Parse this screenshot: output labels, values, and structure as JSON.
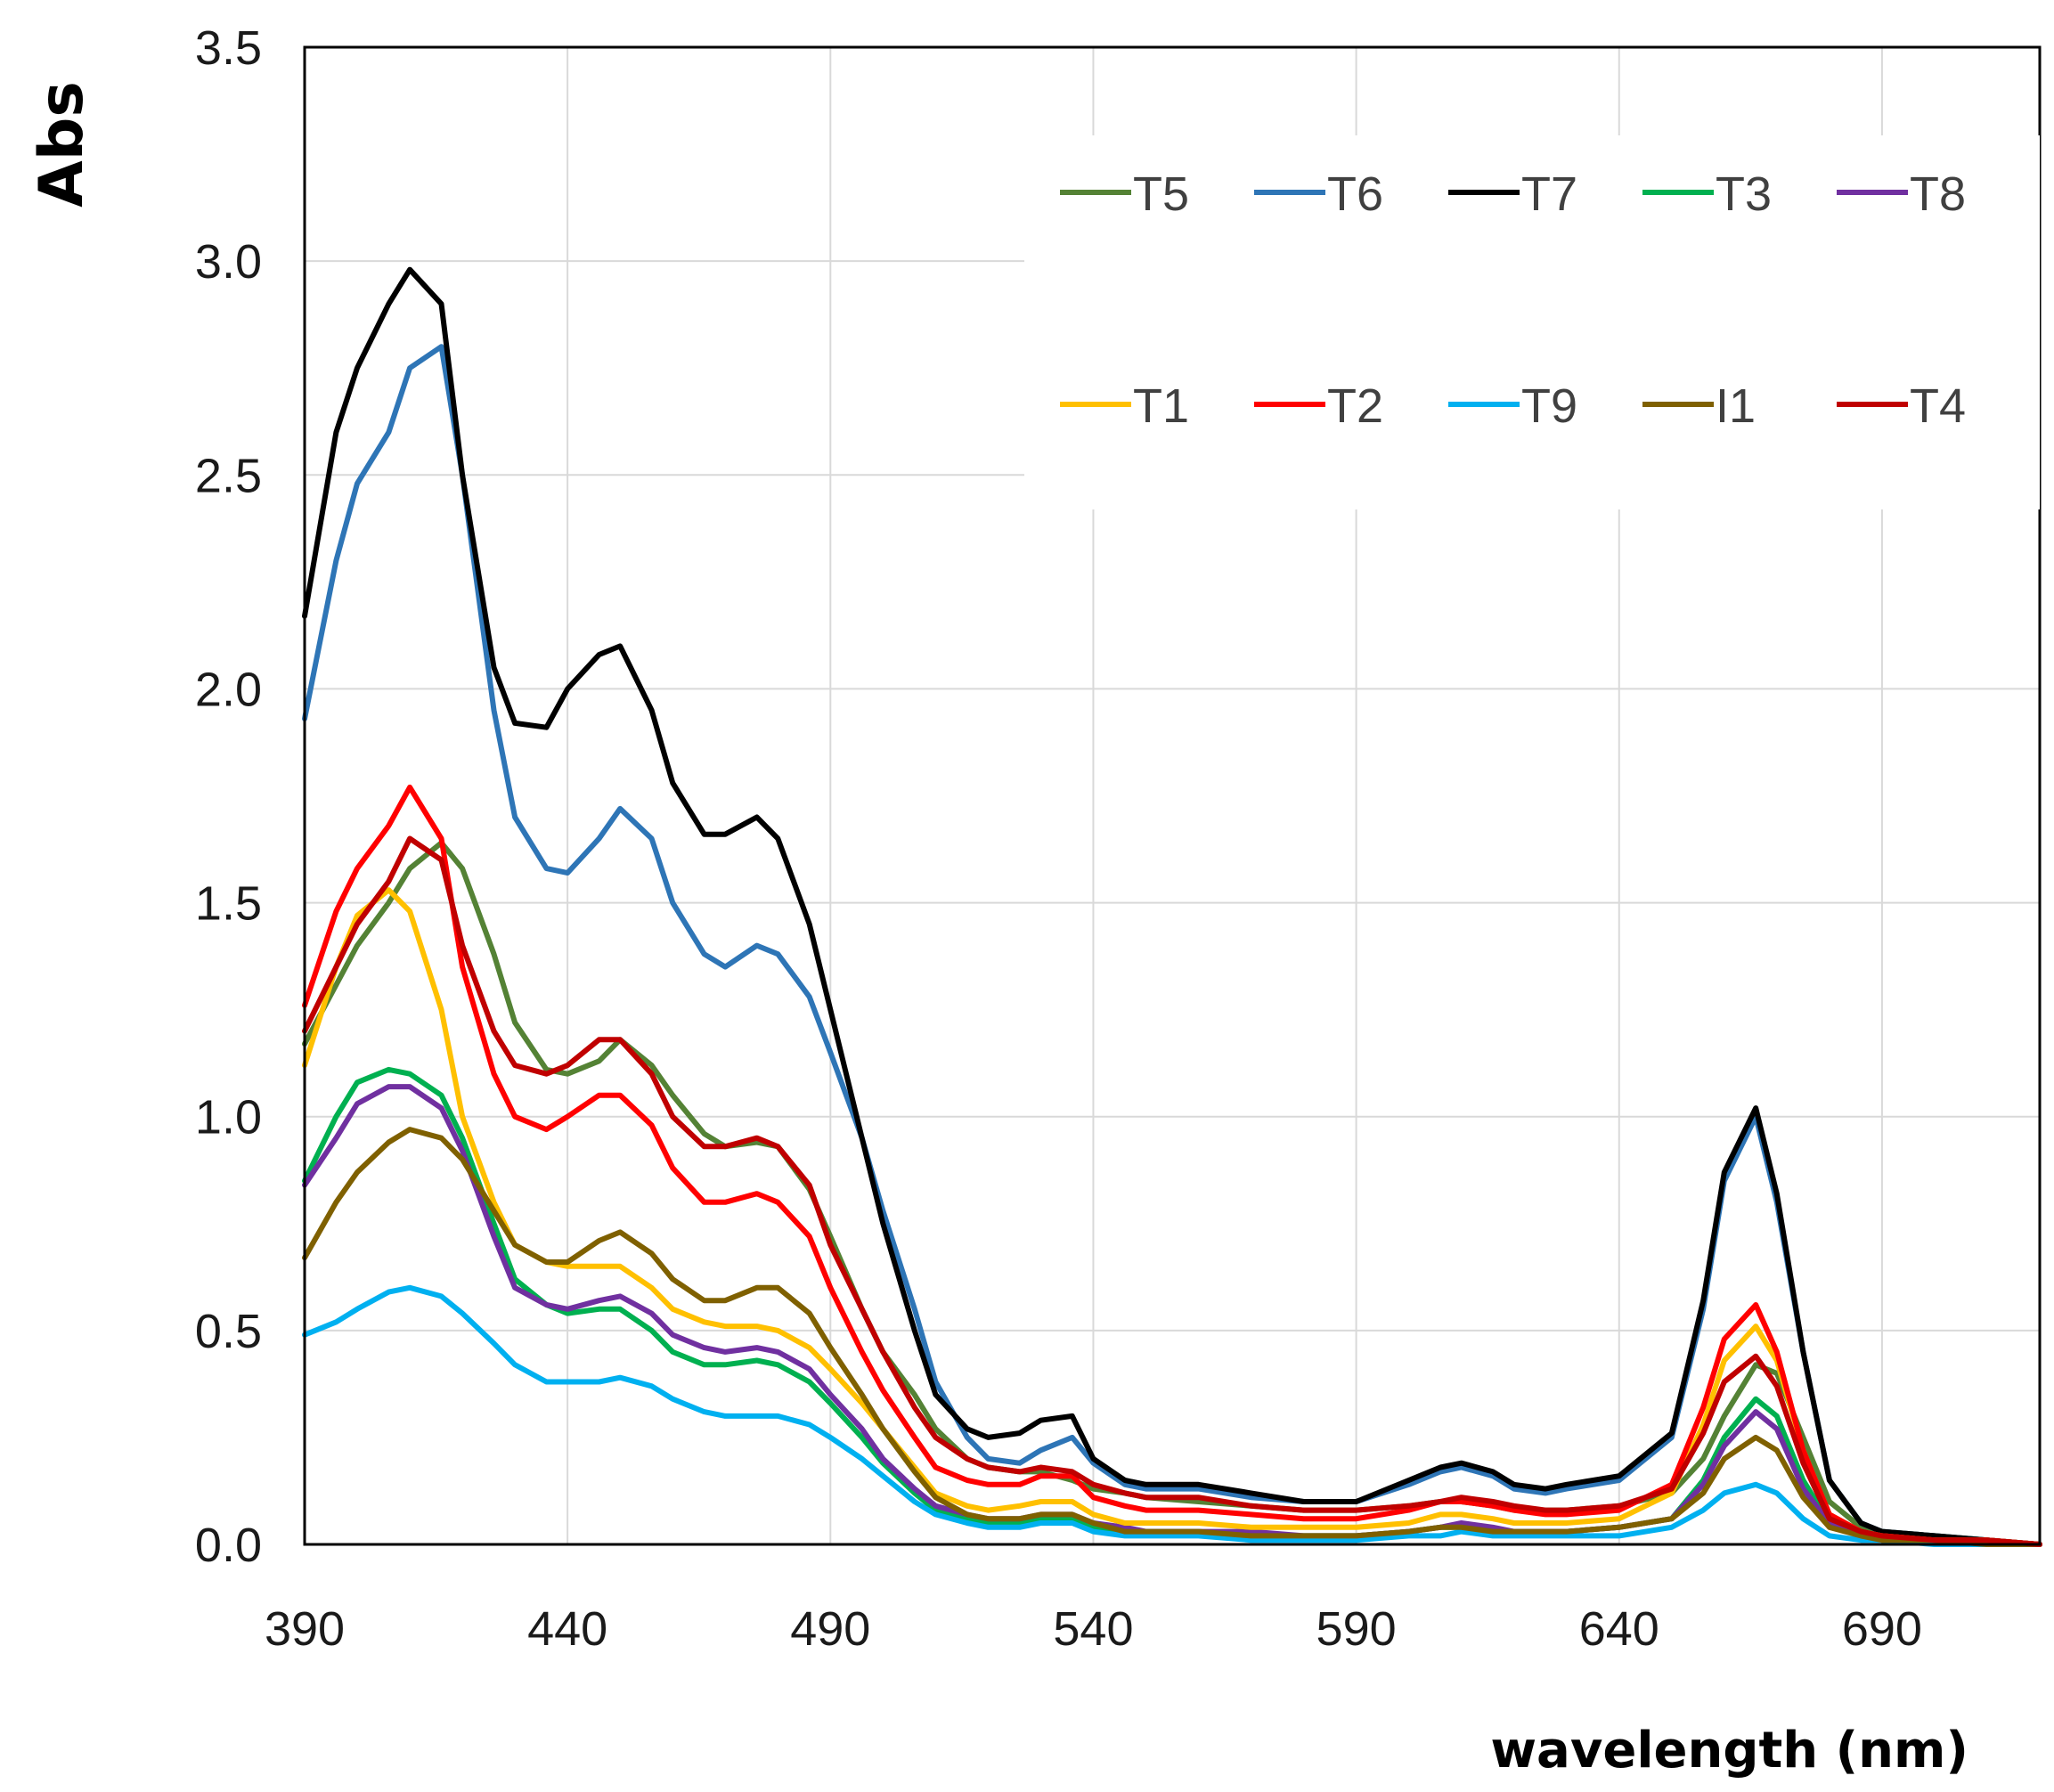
{
  "chart_data": {
    "type": "line",
    "title": "",
    "xlabel": "wavelength (nm)",
    "ylabel": "Abs",
    "xlim": [
      390,
      720
    ],
    "ylim": [
      0,
      3.5
    ],
    "xticks": [
      390,
      440,
      490,
      540,
      590,
      640,
      690
    ],
    "yticks": [
      "0.0",
      "0.5",
      "1.0",
      "1.5",
      "2.0",
      "2.5",
      "3.0",
      "3.5"
    ],
    "grid": true,
    "legend_position": "top-right",
    "series": [
      {
        "name": "T5",
        "color": "#548235",
        "x": [
          390,
          400,
          406,
          410,
          416,
          420,
          426,
          430,
          436,
          440,
          446,
          450,
          456,
          460,
          466,
          470,
          476,
          480,
          486,
          490,
          496,
          500,
          506,
          510,
          516,
          520,
          526,
          530,
          536,
          540,
          546,
          550,
          560,
          570,
          580,
          590,
          600,
          606,
          610,
          616,
          620,
          626,
          630,
          640,
          650,
          656,
          660,
          666,
          670,
          675,
          680,
          686,
          690,
          700,
          710,
          720
        ],
        "y": [
          1.17,
          1.4,
          1.5,
          1.58,
          1.64,
          1.58,
          1.38,
          1.22,
          1.11,
          1.1,
          1.13,
          1.18,
          1.12,
          1.05,
          0.96,
          0.93,
          0.94,
          0.93,
          0.83,
          0.72,
          0.55,
          0.45,
          0.35,
          0.27,
          0.2,
          0.18,
          0.17,
          0.17,
          0.15,
          0.13,
          0.12,
          0.11,
          0.1,
          0.09,
          0.08,
          0.08,
          0.09,
          0.1,
          0.1,
          0.09,
          0.08,
          0.08,
          0.08,
          0.09,
          0.12,
          0.2,
          0.3,
          0.42,
          0.4,
          0.25,
          0.1,
          0.04,
          0.03,
          0.02,
          0.01,
          0.0
        ]
      },
      {
        "name": "T6",
        "color": "#2E75B6",
        "x": [
          390,
          396,
          400,
          406,
          410,
          416,
          420,
          426,
          430,
          436,
          440,
          446,
          450,
          456,
          460,
          466,
          470,
          476,
          480,
          486,
          490,
          496,
          500,
          506,
          510,
          516,
          520,
          526,
          530,
          536,
          540,
          546,
          550,
          560,
          570,
          580,
          590,
          600,
          606,
          610,
          616,
          620,
          626,
          630,
          640,
          650,
          656,
          660,
          666,
          670,
          675,
          680,
          686,
          690,
          700,
          710,
          720
        ],
        "y": [
          1.93,
          2.3,
          2.48,
          2.6,
          2.75,
          2.8,
          2.5,
          1.95,
          1.7,
          1.58,
          1.57,
          1.65,
          1.72,
          1.65,
          1.5,
          1.38,
          1.35,
          1.4,
          1.38,
          1.28,
          1.15,
          0.95,
          0.78,
          0.55,
          0.38,
          0.25,
          0.2,
          0.19,
          0.22,
          0.25,
          0.19,
          0.14,
          0.13,
          0.13,
          0.11,
          0.1,
          0.1,
          0.14,
          0.17,
          0.18,
          0.16,
          0.13,
          0.12,
          0.13,
          0.15,
          0.25,
          0.55,
          0.85,
          1.0,
          0.8,
          0.45,
          0.15,
          0.05,
          0.03,
          0.02,
          0.01,
          0.0
        ]
      },
      {
        "name": "T7",
        "color": "#000000",
        "x": [
          390,
          396,
          400,
          406,
          410,
          416,
          420,
          426,
          430,
          436,
          440,
          446,
          450,
          456,
          460,
          466,
          470,
          476,
          480,
          486,
          490,
          496,
          500,
          506,
          510,
          516,
          520,
          526,
          530,
          536,
          540,
          546,
          550,
          560,
          570,
          580,
          590,
          600,
          606,
          610,
          616,
          620,
          626,
          630,
          640,
          650,
          656,
          660,
          666,
          670,
          675,
          680,
          686,
          690,
          700,
          710,
          720
        ],
        "y": [
          2.17,
          2.6,
          2.75,
          2.9,
          2.98,
          2.9,
          2.5,
          2.05,
          1.92,
          1.91,
          2.0,
          2.08,
          2.1,
          1.95,
          1.78,
          1.66,
          1.66,
          1.7,
          1.65,
          1.45,
          1.25,
          0.95,
          0.75,
          0.5,
          0.35,
          0.27,
          0.25,
          0.26,
          0.29,
          0.3,
          0.2,
          0.15,
          0.14,
          0.14,
          0.12,
          0.1,
          0.1,
          0.15,
          0.18,
          0.19,
          0.17,
          0.14,
          0.13,
          0.14,
          0.16,
          0.26,
          0.57,
          0.87,
          1.02,
          0.82,
          0.45,
          0.15,
          0.05,
          0.03,
          0.02,
          0.01,
          0.0
        ]
      },
      {
        "name": "T3",
        "color": "#00B050",
        "x": [
          390,
          396,
          400,
          406,
          410,
          416,
          420,
          426,
          430,
          436,
          440,
          446,
          450,
          456,
          460,
          466,
          470,
          476,
          480,
          486,
          490,
          496,
          500,
          506,
          510,
          516,
          520,
          526,
          530,
          536,
          540,
          546,
          550,
          560,
          570,
          580,
          590,
          600,
          606,
          610,
          616,
          620,
          626,
          630,
          640,
          650,
          656,
          660,
          666,
          670,
          675,
          680,
          686,
          690,
          700,
          710,
          720
        ],
        "y": [
          0.85,
          1.0,
          1.08,
          1.11,
          1.1,
          1.05,
          0.95,
          0.75,
          0.62,
          0.56,
          0.54,
          0.55,
          0.55,
          0.5,
          0.45,
          0.42,
          0.42,
          0.43,
          0.42,
          0.38,
          0.33,
          0.25,
          0.19,
          0.12,
          0.08,
          0.06,
          0.05,
          0.05,
          0.06,
          0.06,
          0.04,
          0.03,
          0.03,
          0.03,
          0.02,
          0.02,
          0.02,
          0.03,
          0.04,
          0.04,
          0.03,
          0.03,
          0.03,
          0.03,
          0.04,
          0.06,
          0.15,
          0.25,
          0.34,
          0.3,
          0.15,
          0.05,
          0.02,
          0.01,
          0.01,
          0.0,
          0.0
        ]
      },
      {
        "name": "T8",
        "color": "#7030A0",
        "x": [
          390,
          396,
          400,
          406,
          410,
          416,
          420,
          426,
          430,
          436,
          440,
          446,
          450,
          456,
          460,
          466,
          470,
          476,
          480,
          486,
          490,
          496,
          500,
          506,
          510,
          516,
          520,
          526,
          530,
          536,
          540,
          546,
          550,
          560,
          570,
          580,
          590,
          600,
          606,
          610,
          616,
          620,
          626,
          630,
          640,
          650,
          656,
          660,
          666,
          670,
          675,
          680,
          686,
          690,
          700,
          710,
          720
        ],
        "y": [
          0.84,
          0.95,
          1.03,
          1.07,
          1.07,
          1.02,
          0.92,
          0.72,
          0.6,
          0.56,
          0.55,
          0.57,
          0.58,
          0.54,
          0.49,
          0.46,
          0.45,
          0.46,
          0.45,
          0.41,
          0.35,
          0.27,
          0.2,
          0.13,
          0.09,
          0.07,
          0.06,
          0.06,
          0.07,
          0.07,
          0.05,
          0.04,
          0.03,
          0.03,
          0.03,
          0.02,
          0.02,
          0.03,
          0.04,
          0.05,
          0.04,
          0.03,
          0.03,
          0.03,
          0.04,
          0.06,
          0.14,
          0.23,
          0.31,
          0.27,
          0.13,
          0.05,
          0.02,
          0.01,
          0.01,
          0.0,
          0.0
        ]
      },
      {
        "name": "T1",
        "color": "#FFC000",
        "x": [
          390,
          396,
          400,
          406,
          410,
          416,
          420,
          426,
          430,
          436,
          440,
          446,
          450,
          456,
          460,
          466,
          470,
          476,
          480,
          486,
          490,
          496,
          500,
          506,
          510,
          516,
          520,
          526,
          530,
          536,
          540,
          546,
          550,
          560,
          570,
          580,
          590,
          600,
          606,
          610,
          616,
          620,
          626,
          630,
          640,
          650,
          656,
          660,
          666,
          670,
          675,
          680,
          686,
          690,
          700,
          710,
          720
        ],
        "y": [
          1.12,
          1.35,
          1.47,
          1.53,
          1.48,
          1.25,
          1.0,
          0.8,
          0.7,
          0.66,
          0.65,
          0.65,
          0.65,
          0.6,
          0.55,
          0.52,
          0.51,
          0.51,
          0.5,
          0.46,
          0.41,
          0.33,
          0.27,
          0.18,
          0.12,
          0.09,
          0.08,
          0.09,
          0.1,
          0.1,
          0.07,
          0.05,
          0.05,
          0.05,
          0.04,
          0.04,
          0.04,
          0.05,
          0.07,
          0.07,
          0.06,
          0.05,
          0.05,
          0.05,
          0.06,
          0.12,
          0.28,
          0.43,
          0.51,
          0.43,
          0.22,
          0.07,
          0.03,
          0.02,
          0.01,
          0.01,
          0.0
        ]
      },
      {
        "name": "T2",
        "color": "#FF0000",
        "x": [
          390,
          396,
          400,
          406,
          410,
          416,
          420,
          426,
          430,
          436,
          440,
          446,
          450,
          456,
          460,
          466,
          470,
          476,
          480,
          486,
          490,
          496,
          500,
          506,
          510,
          516,
          520,
          526,
          530,
          536,
          540,
          546,
          550,
          560,
          570,
          580,
          590,
          600,
          606,
          610,
          616,
          620,
          626,
          630,
          640,
          650,
          656,
          660,
          666,
          670,
          675,
          680,
          686,
          690,
          700,
          710,
          720
        ],
        "y": [
          1.26,
          1.48,
          1.58,
          1.68,
          1.77,
          1.65,
          1.35,
          1.1,
          1.0,
          0.97,
          1.0,
          1.05,
          1.05,
          0.98,
          0.88,
          0.8,
          0.8,
          0.82,
          0.8,
          0.72,
          0.6,
          0.45,
          0.36,
          0.25,
          0.18,
          0.15,
          0.14,
          0.14,
          0.16,
          0.16,
          0.11,
          0.09,
          0.08,
          0.08,
          0.07,
          0.06,
          0.06,
          0.08,
          0.1,
          0.1,
          0.09,
          0.08,
          0.07,
          0.07,
          0.08,
          0.14,
          0.32,
          0.48,
          0.56,
          0.45,
          0.22,
          0.07,
          0.03,
          0.02,
          0.01,
          0.01,
          0.0
        ]
      },
      {
        "name": "T9",
        "color": "#00B0F0",
        "x": [
          390,
          396,
          400,
          406,
          410,
          416,
          420,
          426,
          430,
          436,
          440,
          446,
          450,
          456,
          460,
          466,
          470,
          476,
          480,
          486,
          490,
          496,
          500,
          506,
          510,
          516,
          520,
          526,
          530,
          536,
          540,
          546,
          550,
          560,
          570,
          580,
          590,
          600,
          606,
          610,
          616,
          620,
          626,
          630,
          640,
          650,
          656,
          660,
          666,
          670,
          675,
          680,
          686,
          690,
          700,
          710,
          720
        ],
        "y": [
          0.49,
          0.52,
          0.55,
          0.59,
          0.6,
          0.58,
          0.54,
          0.47,
          0.42,
          0.38,
          0.38,
          0.38,
          0.39,
          0.37,
          0.34,
          0.31,
          0.3,
          0.3,
          0.3,
          0.28,
          0.25,
          0.2,
          0.16,
          0.1,
          0.07,
          0.05,
          0.04,
          0.04,
          0.05,
          0.05,
          0.03,
          0.02,
          0.02,
          0.02,
          0.01,
          0.01,
          0.01,
          0.02,
          0.02,
          0.03,
          0.02,
          0.02,
          0.02,
          0.02,
          0.02,
          0.04,
          0.08,
          0.12,
          0.14,
          0.12,
          0.06,
          0.02,
          0.01,
          0.01,
          0.0,
          0.0,
          0.0
        ]
      },
      {
        "name": "I1",
        "color": "#7F6000",
        "x": [
          390,
          396,
          400,
          406,
          410,
          416,
          420,
          426,
          430,
          436,
          440,
          446,
          450,
          456,
          460,
          466,
          470,
          476,
          480,
          486,
          490,
          496,
          500,
          506,
          510,
          516,
          520,
          526,
          530,
          536,
          540,
          546,
          550,
          560,
          570,
          580,
          590,
          600,
          606,
          610,
          616,
          620,
          626,
          630,
          640,
          650,
          656,
          660,
          666,
          670,
          675,
          680,
          686,
          690,
          700,
          710,
          720
        ],
        "y": [
          0.67,
          0.8,
          0.87,
          0.94,
          0.97,
          0.95,
          0.9,
          0.78,
          0.7,
          0.66,
          0.66,
          0.71,
          0.73,
          0.68,
          0.62,
          0.57,
          0.57,
          0.6,
          0.6,
          0.54,
          0.46,
          0.35,
          0.27,
          0.17,
          0.11,
          0.07,
          0.06,
          0.06,
          0.07,
          0.07,
          0.05,
          0.03,
          0.03,
          0.03,
          0.02,
          0.02,
          0.02,
          0.03,
          0.04,
          0.04,
          0.03,
          0.03,
          0.03,
          0.03,
          0.04,
          0.06,
          0.12,
          0.2,
          0.25,
          0.22,
          0.11,
          0.04,
          0.02,
          0.01,
          0.01,
          0.0,
          0.0
        ]
      },
      {
        "name": "T4",
        "color": "#C00000",
        "x": [
          390,
          396,
          400,
          406,
          410,
          416,
          420,
          426,
          430,
          436,
          440,
          446,
          450,
          456,
          460,
          466,
          470,
          476,
          480,
          486,
          490,
          496,
          500,
          506,
          510,
          516,
          520,
          526,
          530,
          536,
          540,
          546,
          550,
          560,
          570,
          580,
          590,
          600,
          606,
          610,
          616,
          620,
          626,
          630,
          640,
          650,
          656,
          660,
          666,
          670,
          675,
          680,
          686,
          690,
          700,
          710,
          720
        ],
        "y": [
          1.2,
          1.35,
          1.45,
          1.55,
          1.65,
          1.6,
          1.4,
          1.2,
          1.12,
          1.1,
          1.12,
          1.18,
          1.18,
          1.1,
          1.0,
          0.93,
          0.93,
          0.95,
          0.93,
          0.84,
          0.7,
          0.55,
          0.45,
          0.32,
          0.25,
          0.2,
          0.18,
          0.17,
          0.18,
          0.17,
          0.14,
          0.12,
          0.11,
          0.11,
          0.09,
          0.08,
          0.08,
          0.09,
          0.1,
          0.11,
          0.1,
          0.09,
          0.08,
          0.08,
          0.09,
          0.13,
          0.26,
          0.38,
          0.44,
          0.37,
          0.19,
          0.06,
          0.03,
          0.02,
          0.01,
          0.01,
          0.0
        ]
      }
    ]
  }
}
